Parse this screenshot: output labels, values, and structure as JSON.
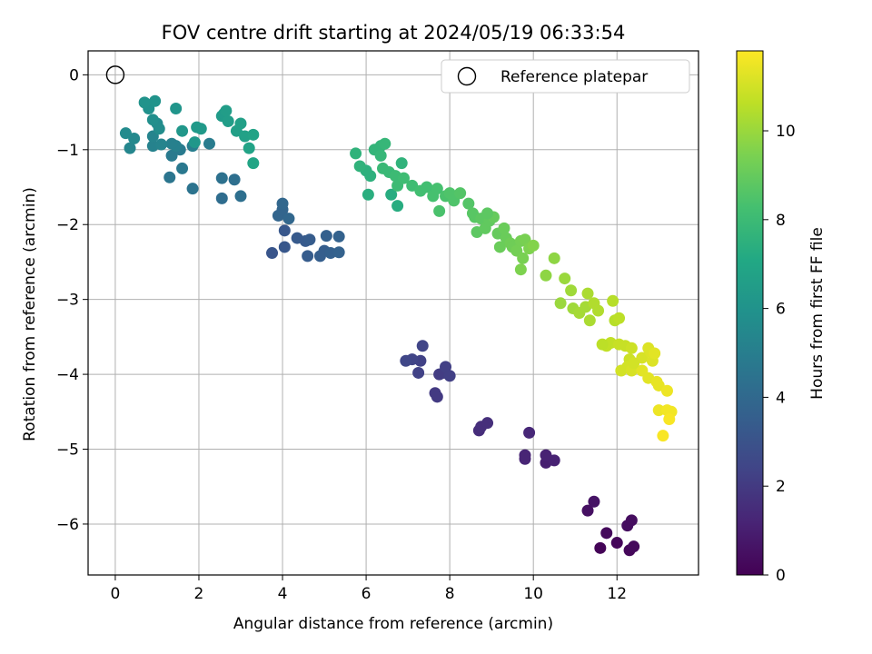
{
  "chart_data": {
    "type": "scatter",
    "title": "FOV centre drift starting at 2024/05/19 06:33:54",
    "xlabel": "Angular distance from reference (arcmin)",
    "ylabel": "Rotation from reference (arcmin)",
    "xlim": [
      -0.65,
      13.95
    ],
    "ylim": [
      -6.68,
      0.32
    ],
    "xticks": [
      "0",
      "2",
      "4",
      "6",
      "8",
      "10",
      "12"
    ],
    "yticks": [
      "0",
      "−1",
      "−2",
      "−3",
      "−4",
      "−5",
      "−6"
    ],
    "grid": true,
    "legend": {
      "placement": "top-right",
      "entries": [
        {
          "label": "Reference platepar",
          "marker": "open-circle"
        }
      ]
    },
    "reference_point": {
      "x": 0,
      "y": 0
    },
    "colorbar": {
      "label": "Hours from first FF file",
      "colormap": "viridis",
      "range": [
        0,
        11.8
      ],
      "ticks": [
        "0",
        "2",
        "4",
        "6",
        "8",
        "10"
      ],
      "stops": [
        "#440154",
        "#482475",
        "#414487",
        "#355f8d",
        "#2a788e",
        "#21918c",
        "#22a884",
        "#44bf70",
        "#7ad151",
        "#bddf26",
        "#fde725"
      ]
    },
    "points": [
      [
        11.6,
        -6.32,
        0.1
      ],
      [
        12.0,
        -6.25,
        0.2
      ],
      [
        12.3,
        -6.35,
        0.2
      ],
      [
        12.4,
        -6.3,
        0.3
      ],
      [
        11.75,
        -6.12,
        0.3
      ],
      [
        12.25,
        -6.02,
        0.4
      ],
      [
        12.35,
        -5.95,
        0.4
      ],
      [
        11.3,
        -5.82,
        0.5
      ],
      [
        11.45,
        -5.7,
        0.6
      ],
      [
        10.3,
        -5.18,
        1.0
      ],
      [
        10.5,
        -5.15,
        1.1
      ],
      [
        10.3,
        -5.08,
        1.1
      ],
      [
        9.8,
        -5.13,
        1.2
      ],
      [
        9.8,
        -5.08,
        1.2
      ],
      [
        9.9,
        -4.78,
        1.3
      ],
      [
        8.7,
        -4.75,
        1.5
      ],
      [
        8.75,
        -4.7,
        1.6
      ],
      [
        8.9,
        -4.65,
        1.6
      ],
      [
        7.65,
        -4.25,
        2.0
      ],
      [
        7.7,
        -4.3,
        2.0
      ],
      [
        7.75,
        -4.0,
        2.1
      ],
      [
        7.85,
        -3.98,
        2.1
      ],
      [
        7.9,
        -3.9,
        2.2
      ],
      [
        8.0,
        -4.02,
        2.2
      ],
      [
        7.25,
        -3.98,
        2.3
      ],
      [
        7.3,
        -3.82,
        2.3
      ],
      [
        7.35,
        -3.62,
        2.4
      ],
      [
        7.1,
        -3.8,
        2.4
      ],
      [
        6.95,
        -3.82,
        2.5
      ],
      [
        3.75,
        -2.38,
        3.1
      ],
      [
        4.05,
        -2.3,
        3.2
      ],
      [
        4.05,
        -2.08,
        3.2
      ],
      [
        4.35,
        -2.18,
        3.3
      ],
      [
        4.55,
        -2.22,
        3.3
      ],
      [
        4.6,
        -2.42,
        3.4
      ],
      [
        4.65,
        -2.2,
        3.4
      ],
      [
        4.9,
        -2.42,
        3.5
      ],
      [
        5.0,
        -2.35,
        3.5
      ],
      [
        5.15,
        -2.38,
        3.6
      ],
      [
        5.05,
        -2.15,
        3.6
      ],
      [
        5.35,
        -2.16,
        3.7
      ],
      [
        5.35,
        -2.37,
        3.7
      ],
      [
        3.9,
        -1.88,
        3.8
      ],
      [
        4.0,
        -1.8,
        3.8
      ],
      [
        4.0,
        -1.72,
        3.9
      ],
      [
        4.15,
        -1.92,
        3.9
      ],
      [
        2.55,
        -1.65,
        4.2
      ],
      [
        3.0,
        -1.62,
        4.3
      ],
      [
        2.85,
        -1.4,
        4.3
      ],
      [
        2.55,
        -1.38,
        4.4
      ],
      [
        1.85,
        -1.52,
        4.5
      ],
      [
        1.3,
        -1.37,
        4.6
      ],
      [
        1.6,
        -1.25,
        4.7
      ],
      [
        1.35,
        -1.08,
        4.8
      ],
      [
        1.55,
        -1.0,
        4.8
      ],
      [
        2.25,
        -0.92,
        4.9
      ],
      [
        1.85,
        -0.95,
        5.0
      ],
      [
        1.45,
        -0.95,
        5.1
      ],
      [
        1.35,
        -0.92,
        5.1
      ],
      [
        0.9,
        -0.95,
        5.2
      ],
      [
        1.1,
        -0.93,
        5.3
      ],
      [
        0.9,
        -0.82,
        5.3
      ],
      [
        0.35,
        -0.98,
        5.4
      ],
      [
        0.45,
        -0.85,
        5.5
      ],
      [
        0.25,
        -0.78,
        5.6
      ],
      [
        1.0,
        -0.65,
        5.6
      ],
      [
        1.05,
        -0.72,
        5.7
      ],
      [
        0.9,
        -0.6,
        5.8
      ],
      [
        0.8,
        -0.45,
        5.9
      ],
      [
        0.7,
        -0.37,
        6.0
      ],
      [
        0.95,
        -0.35,
        6.0
      ],
      [
        1.45,
        -0.45,
        6.1
      ],
      [
        1.6,
        -0.75,
        6.2
      ],
      [
        1.9,
        -0.9,
        6.2
      ],
      [
        1.95,
        -0.7,
        6.3
      ],
      [
        2.05,
        -0.72,
        6.3
      ],
      [
        2.55,
        -0.55,
        6.4
      ],
      [
        2.6,
        -0.52,
        6.4
      ],
      [
        2.65,
        -0.48,
        6.5
      ],
      [
        2.7,
        -0.62,
        6.5
      ],
      [
        2.9,
        -0.75,
        6.6
      ],
      [
        3.0,
        -0.65,
        6.6
      ],
      [
        3.1,
        -0.82,
        6.7
      ],
      [
        3.2,
        -0.98,
        6.8
      ],
      [
        3.3,
        -0.8,
        6.8
      ],
      [
        3.3,
        -1.18,
        6.9
      ],
      [
        6.6,
        -1.6,
        7.3
      ],
      [
        6.75,
        -1.75,
        7.3
      ],
      [
        6.05,
        -1.6,
        7.4
      ],
      [
        6.1,
        -1.35,
        7.5
      ],
      [
        6.0,
        -1.28,
        7.5
      ],
      [
        5.85,
        -1.22,
        7.6
      ],
      [
        5.75,
        -1.05,
        7.6
      ],
      [
        6.2,
        -1.0,
        7.7
      ],
      [
        6.35,
        -0.95,
        7.7
      ],
      [
        6.45,
        -0.92,
        7.8
      ],
      [
        6.35,
        -1.08,
        7.8
      ],
      [
        6.4,
        -1.25,
        7.9
      ],
      [
        6.55,
        -1.3,
        7.9
      ],
      [
        6.7,
        -1.35,
        8.0
      ],
      [
        6.75,
        -1.48,
        8.0
      ],
      [
        6.9,
        -1.38,
        8.1
      ],
      [
        7.1,
        -1.48,
        8.1
      ],
      [
        7.3,
        -1.55,
        8.2
      ],
      [
        7.45,
        -1.5,
        8.2
      ],
      [
        7.6,
        -1.62,
        8.3
      ],
      [
        7.7,
        -1.52,
        8.3
      ],
      [
        7.75,
        -1.82,
        8.4
      ],
      [
        7.9,
        -1.62,
        8.4
      ],
      [
        8.0,
        -1.58,
        8.5
      ],
      [
        8.1,
        -1.68,
        8.5
      ],
      [
        8.25,
        -1.58,
        8.6
      ],
      [
        8.45,
        -1.72,
        8.6
      ],
      [
        8.55,
        -1.85,
        8.7
      ],
      [
        8.6,
        -1.9,
        8.7
      ],
      [
        8.65,
        -2.1,
        8.8
      ],
      [
        8.75,
        -1.92,
        8.8
      ],
      [
        8.85,
        -2.05,
        8.9
      ],
      [
        8.95,
        -1.95,
        8.9
      ],
      [
        9.05,
        -1.9,
        9.0
      ],
      [
        9.15,
        -2.12,
        9.0
      ],
      [
        9.2,
        -2.3,
        9.1
      ],
      [
        9.35,
        -2.18,
        9.1
      ],
      [
        9.45,
        -2.25,
        9.2
      ],
      [
        9.5,
        -2.3,
        9.2
      ],
      [
        9.6,
        -2.35,
        9.3
      ],
      [
        9.7,
        -2.22,
        9.3
      ],
      [
        9.8,
        -2.2,
        9.4
      ],
      [
        9.75,
        -2.45,
        9.4
      ],
      [
        9.7,
        -2.6,
        9.5
      ],
      [
        9.9,
        -2.32,
        9.5
      ],
      [
        10.0,
        -2.28,
        9.6
      ],
      [
        10.3,
        -2.68,
        9.8
      ],
      [
        10.65,
        -3.05,
        10.0
      ],
      [
        10.75,
        -2.72,
        10.0
      ],
      [
        10.9,
        -2.88,
        10.1
      ],
      [
        10.95,
        -3.12,
        10.1
      ],
      [
        11.1,
        -3.18,
        10.2
      ],
      [
        11.25,
        -3.1,
        10.2
      ],
      [
        11.3,
        -2.92,
        10.3
      ],
      [
        11.35,
        -3.28,
        10.3
      ],
      [
        11.45,
        -3.05,
        10.4
      ],
      [
        11.55,
        -3.15,
        10.4
      ],
      [
        11.9,
        -3.02,
        10.5
      ],
      [
        11.95,
        -3.28,
        10.5
      ],
      [
        12.05,
        -3.25,
        10.6
      ],
      [
        11.75,
        -3.62,
        10.7
      ],
      [
        11.85,
        -3.58,
        10.7
      ],
      [
        12.05,
        -3.6,
        10.8
      ],
      [
        12.2,
        -3.62,
        10.8
      ],
      [
        12.35,
        -3.65,
        10.9
      ],
      [
        12.3,
        -3.8,
        10.9
      ],
      [
        12.1,
        -3.95,
        11.0
      ],
      [
        12.25,
        -3.9,
        11.0
      ],
      [
        12.35,
        -3.95,
        11.1
      ],
      [
        12.6,
        -3.78,
        11.1
      ],
      [
        12.8,
        -3.7,
        11.2
      ],
      [
        12.85,
        -3.82,
        11.2
      ],
      [
        12.6,
        -3.95,
        11.3
      ],
      [
        12.75,
        -4.05,
        11.3
      ],
      [
        12.95,
        -4.1,
        11.4
      ],
      [
        13.0,
        -4.15,
        11.4
      ],
      [
        13.2,
        -4.22,
        11.5
      ],
      [
        13.0,
        -4.48,
        11.5
      ],
      [
        13.2,
        -4.48,
        11.6
      ],
      [
        13.3,
        -4.5,
        11.6
      ],
      [
        13.25,
        -4.6,
        11.7
      ],
      [
        13.1,
        -4.82,
        11.7
      ],
      [
        12.75,
        -3.65,
        11.2
      ],
      [
        12.9,
        -3.72,
        11.3
      ],
      [
        8.9,
        -1.85,
        8.8
      ],
      [
        9.3,
        -2.05,
        9.1
      ],
      [
        10.5,
        -2.45,
        9.8
      ],
      [
        11.65,
        -3.6,
        10.6
      ],
      [
        12.4,
        -3.85,
        11.0
      ],
      [
        6.85,
        -1.18,
        7.6
      ]
    ]
  }
}
